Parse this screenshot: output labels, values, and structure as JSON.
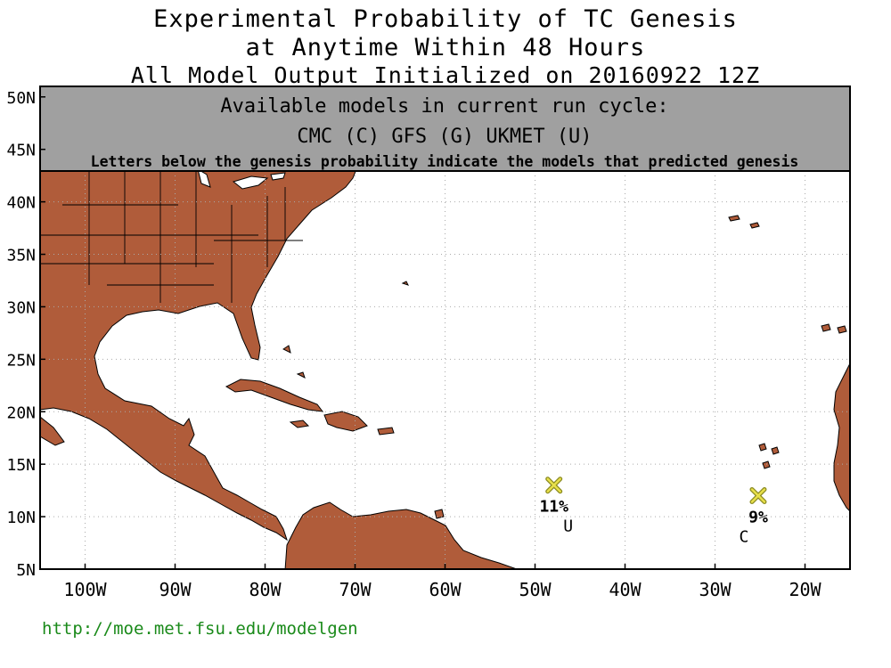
{
  "title": {
    "line1": "Experimental Probability of TC Genesis",
    "line2": "at Anytime Within 48 Hours",
    "line3": "All Model Output Initialized on 20160922 12Z"
  },
  "banner": {
    "line1": "Available models in current run cycle:",
    "line2": "CMC (C) GFS (G)  UKMET (U)",
    "line3": "Letters below the genesis probability indicate the models that predicted genesis"
  },
  "axes": {
    "lat_labels": [
      "50N",
      "45N",
      "40N",
      "35N",
      "30N",
      "25N",
      "20N",
      "15N",
      "10N",
      "5N"
    ],
    "lat_values": [
      50,
      45,
      40,
      35,
      30,
      25,
      20,
      15,
      10,
      5
    ],
    "lon_labels": [
      "100W",
      "90W",
      "80W",
      "70W",
      "60W",
      "50W",
      "40W",
      "30W",
      "20W"
    ],
    "lon_values": [
      -100,
      -90,
      -80,
      -70,
      -60,
      -50,
      -40,
      -30,
      -20
    ],
    "lon_range": [
      -105,
      -15
    ],
    "lat_range": [
      5,
      51
    ],
    "grid": "dotted"
  },
  "markers": [
    {
      "lon": -47.9,
      "lat": 13.0,
      "prob": "11%",
      "models": "U"
    },
    {
      "lon": -25.2,
      "lat": 12.0,
      "prob": "9%",
      "models": "C"
    }
  ],
  "colors": {
    "land": "#b05c3a",
    "banner": "#a0a0a0",
    "grid": "#aaaaaa",
    "marker_fill": "#e8e04a",
    "marker_stroke": "#8a8a20",
    "link": "#1a8a1a"
  },
  "footer": {
    "url": "http://moe.met.fsu.edu/modelgen"
  }
}
